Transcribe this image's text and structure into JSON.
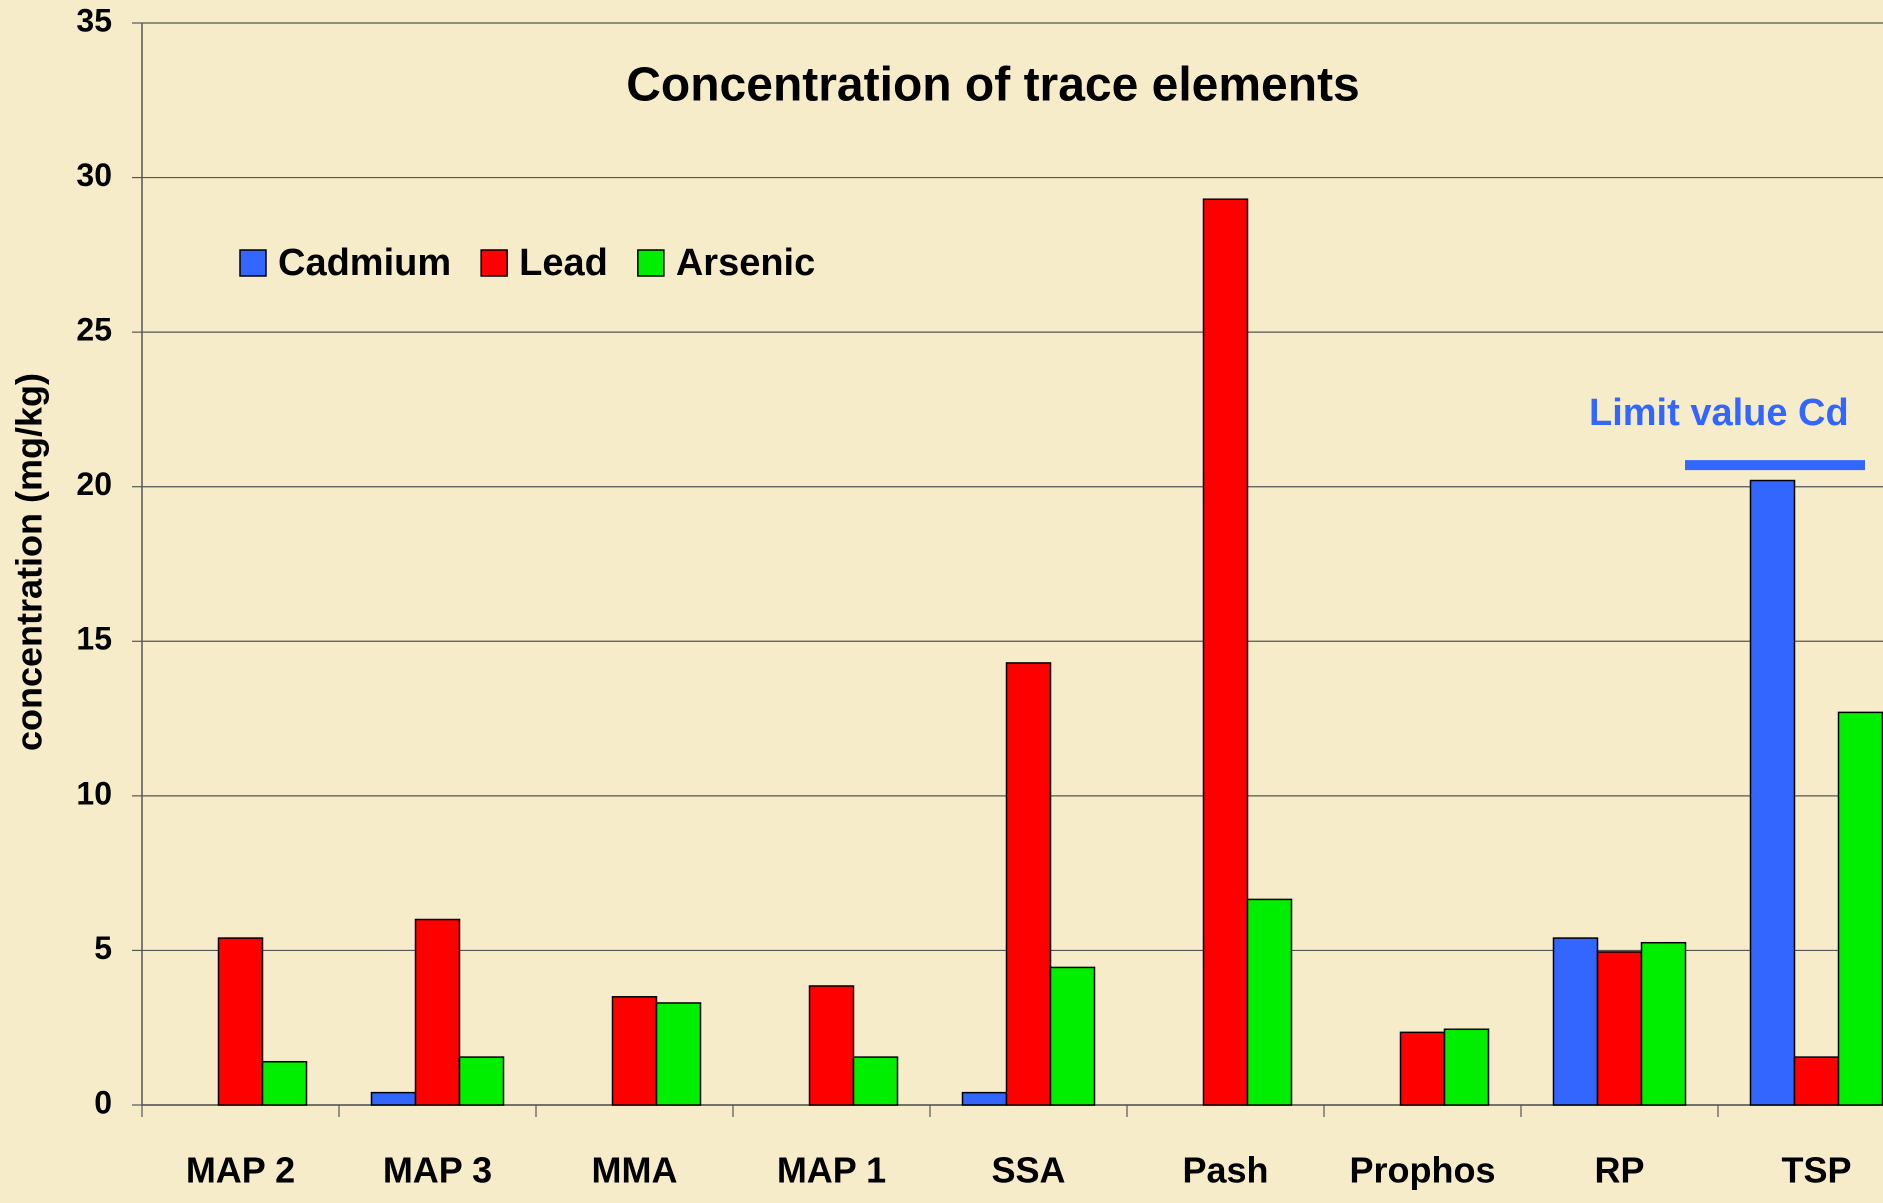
{
  "chart_data": {
    "type": "bar",
    "title": "Concentration of trace elements",
    "y_label": "concentration  (mg/kg)",
    "categories": [
      "MAP 2",
      "MAP 3",
      "MMA",
      "MAP 1",
      "SSA",
      "Pash",
      "Prophos",
      "RP",
      "TSP"
    ],
    "series": [
      {
        "name": "Cadmium",
        "color": "#3366ff",
        "values": [
          0,
          0.4,
          0,
          0,
          0.4,
          0,
          0,
          5.4,
          20.2
        ]
      },
      {
        "name": "Lead",
        "color": "#ff0000",
        "values": [
          5.4,
          6.0,
          3.5,
          3.85,
          14.3,
          29.3,
          2.35,
          4.95,
          1.55
        ]
      },
      {
        "name": "Arsenic",
        "color": "#00ee00",
        "values": [
          1.4,
          1.55,
          3.3,
          1.55,
          4.45,
          6.65,
          2.45,
          5.25,
          12.7
        ]
      }
    ],
    "ylim": [
      0,
      35
    ],
    "yticks": [
      0,
      5,
      10,
      15,
      20,
      25,
      30,
      35
    ],
    "grid": true,
    "legend": "top-left",
    "annotation": {
      "text": "Limit value Cd",
      "value": 20.7,
      "color": "#3366ff"
    }
  }
}
